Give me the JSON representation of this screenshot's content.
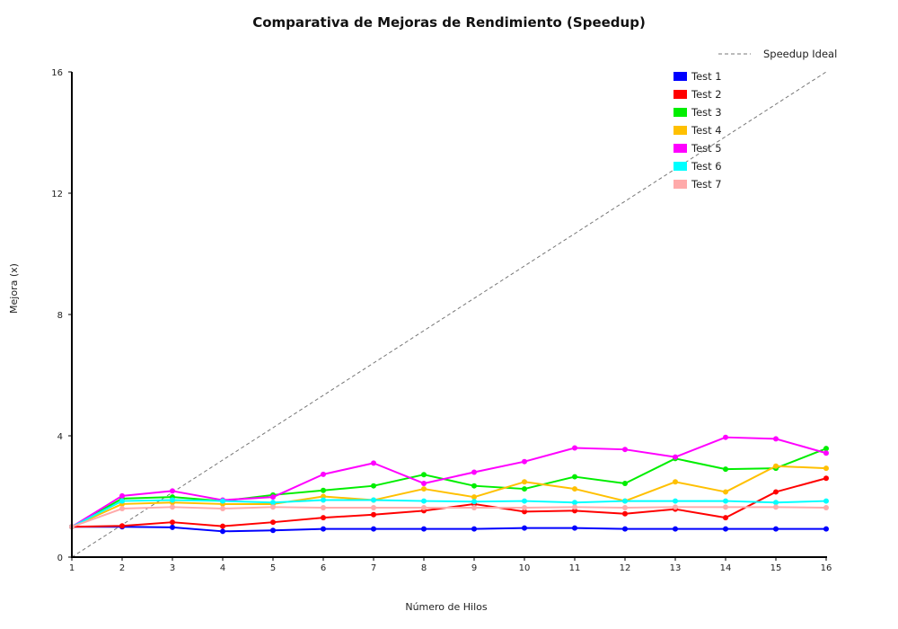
{
  "chart_data": {
    "type": "line",
    "title": "Comparativa de Mejoras de Rendimiento (Speedup)",
    "xlabel": "Número de Hilos",
    "ylabel": "Mejora (x)",
    "xlim": [
      1,
      16
    ],
    "ylim": [
      0,
      16
    ],
    "x": [
      1,
      2,
      3,
      4,
      5,
      6,
      7,
      8,
      9,
      10,
      11,
      12,
      13,
      14,
      15,
      16
    ],
    "x_ticks": [
      "1",
      "2",
      "3",
      "4",
      "5",
      "6",
      "7",
      "8",
      "9",
      "10",
      "11",
      "12",
      "13",
      "14",
      "15",
      "16"
    ],
    "y_ticks": [
      "0",
      "4",
      "8",
      "12",
      "16"
    ],
    "y_tick_values": [
      0,
      4,
      8,
      12,
      16
    ],
    "grid": false,
    "legend_position": "top-right",
    "ideal": {
      "name": "Speedup Ideal",
      "color": "#777777",
      "x": [
        1,
        16
      ],
      "values": [
        0,
        16
      ]
    },
    "series": [
      {
        "name": "Test 1",
        "color": "#0000ff",
        "values": [
          1.0,
          1.0,
          0.98,
          0.85,
          0.88,
          0.93,
          0.93,
          0.93,
          0.93,
          0.96,
          0.96,
          0.93,
          0.93,
          0.93,
          0.93,
          0.93
        ]
      },
      {
        "name": "Test 2",
        "color": "#ff0000",
        "values": [
          1.0,
          1.03,
          1.15,
          1.02,
          1.15,
          1.3,
          1.4,
          1.53,
          1.75,
          1.5,
          1.53,
          1.43,
          1.58,
          1.3,
          2.15,
          2.6
        ]
      },
      {
        "name": "Test 3",
        "color": "#00ee00",
        "values": [
          1.0,
          1.93,
          1.98,
          1.85,
          2.05,
          2.2,
          2.35,
          2.72,
          2.35,
          2.25,
          2.65,
          2.43,
          3.25,
          2.9,
          2.93,
          3.58
        ]
      },
      {
        "name": "Test 4",
        "color": "#ffc000",
        "values": [
          1.0,
          1.75,
          1.8,
          1.75,
          1.75,
          2.0,
          1.88,
          2.25,
          1.98,
          2.48,
          2.25,
          1.85,
          2.48,
          2.15,
          3.0,
          2.93
        ]
      },
      {
        "name": "Test 5",
        "color": "#ff00ff",
        "values": [
          1.0,
          2.02,
          2.18,
          1.88,
          1.98,
          2.73,
          3.1,
          2.43,
          2.8,
          3.15,
          3.6,
          3.55,
          3.3,
          3.95,
          3.9,
          3.43
        ]
      },
      {
        "name": "Test 6",
        "color": "#00ffff",
        "values": [
          1.0,
          1.85,
          1.88,
          1.85,
          1.8,
          1.88,
          1.88,
          1.85,
          1.83,
          1.85,
          1.8,
          1.85,
          1.85,
          1.85,
          1.8,
          1.85
        ]
      },
      {
        "name": "Test 7",
        "color": "#ffaaaa",
        "values": [
          1.0,
          1.6,
          1.65,
          1.6,
          1.65,
          1.63,
          1.63,
          1.63,
          1.63,
          1.63,
          1.65,
          1.63,
          1.65,
          1.65,
          1.65,
          1.63
        ]
      }
    ]
  }
}
